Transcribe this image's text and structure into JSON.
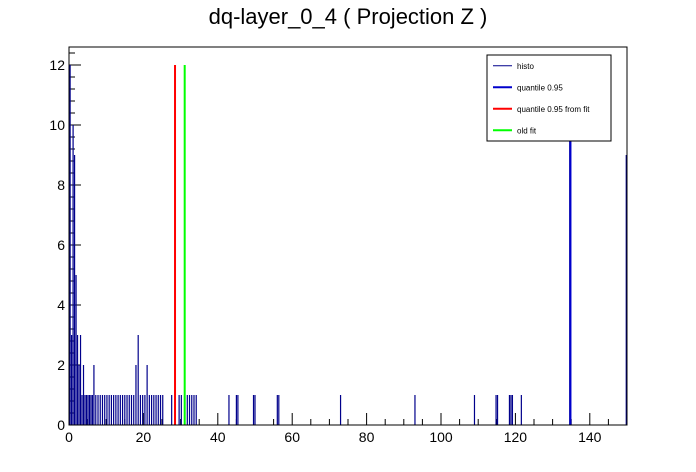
{
  "chart_data": {
    "type": "bar",
    "title": "dq-layer_0_4 ( Projection Z )",
    "xlabel": "",
    "ylabel": "",
    "xlim": [
      0,
      150
    ],
    "ylim": [
      0,
      12.6
    ],
    "x_ticks": [
      0,
      20,
      40,
      60,
      80,
      100,
      120,
      140
    ],
    "y_ticks": [
      0,
      2,
      4,
      6,
      8,
      10,
      12
    ],
    "grid": false,
    "legend_position": "top-right",
    "colors": {
      "histo": "#00008b",
      "quantile": "#0000cc",
      "quantile_fit": "#ff0000",
      "old_fit": "#00ff00"
    },
    "legend": [
      {
        "label": "histo",
        "color": "#00008b",
        "width": 1
      },
      {
        "label": "quantile 0.95",
        "color": "#0000cc",
        "width": 2
      },
      {
        "label": "quantile 0.95 from fit",
        "color": "#ff0000",
        "width": 2
      },
      {
        "label": "old fit",
        "color": "#00ff00",
        "width": 2
      }
    ],
    "series": [
      {
        "name": "histo",
        "x": [
          0.3,
          0.7,
          1.1,
          1.5,
          1.9,
          2.3,
          2.7,
          3.1,
          3.5,
          3.9,
          4.3,
          4.7,
          5.1,
          5.5,
          5.9,
          6.3,
          6.7,
          7.2,
          7.8,
          8.4,
          9.0,
          9.6,
          10.2,
          10.8,
          11.4,
          12.0,
          12.6,
          13.2,
          13.8,
          14.4,
          15.0,
          15.6,
          16.2,
          16.8,
          17.4,
          18.0,
          18.6,
          19.2,
          19.8,
          20.4,
          21.0,
          21.6,
          22.2,
          22.8,
          23.4,
          24.0,
          24.6,
          25.2,
          27.6,
          28.6,
          29.6,
          30.2,
          31.8,
          32.4,
          33.0,
          33.6,
          34.2,
          43.0,
          45.0,
          45.4,
          49.6,
          50.0,
          56.0,
          56.4,
          73.0,
          93.0,
          109.0,
          114.8,
          115.2,
          118.4,
          118.8,
          119.2,
          121.6,
          134.6,
          149.8
        ],
        "values": [
          12,
          3,
          10,
          9,
          5,
          3,
          2,
          3,
          1,
          2,
          1,
          1,
          1,
          1,
          1,
          1,
          2,
          1,
          1,
          1,
          1,
          1,
          1,
          1,
          1,
          1,
          1,
          1,
          1,
          1,
          1,
          1,
          1,
          1,
          1,
          2,
          3,
          1,
          1,
          1,
          2,
          1,
          1,
          1,
          1,
          1,
          1,
          1,
          1,
          1,
          1,
          1,
          1,
          1,
          1,
          1,
          1,
          1,
          1,
          1,
          1,
          1,
          1,
          1,
          1,
          1,
          1,
          1,
          1,
          1,
          1,
          1,
          1,
          10,
          9
        ]
      }
    ],
    "vertical_lines": [
      {
        "name": "quantile 0.95",
        "x": 134.8,
        "y_top": 9.5,
        "color": "#0000cc"
      },
      {
        "name": "quantile 0.95 from fit",
        "x": 28.5,
        "y_top": 12,
        "color": "#ff0000"
      },
      {
        "name": "old fit",
        "x": 31.1,
        "y_top": 12,
        "color": "#00ff00"
      }
    ]
  }
}
